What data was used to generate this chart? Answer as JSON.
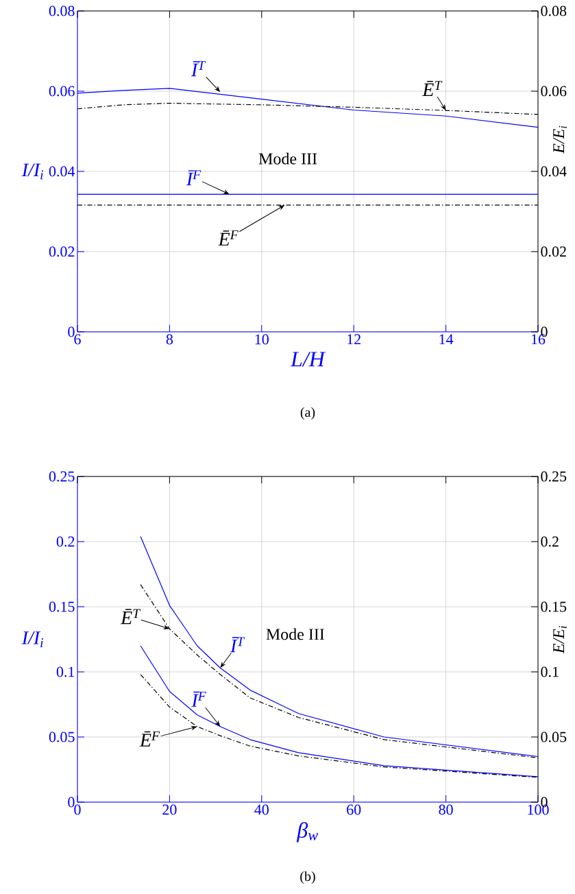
{
  "chart_data": [
    {
      "type": "line",
      "xlabel": "L/H",
      "ylabel": "I/I$_{i}$",
      "y2label": "E/E$_{i}$",
      "x": [
        6,
        7,
        8,
        10,
        12,
        14,
        16
      ],
      "series": [
        {
          "color": "#0000ff",
          "line_style": "solid",
          "values": [
            0.0595,
            0.0602,
            0.0607,
            0.058,
            0.0553,
            0.0538,
            0.051
          ]
        },
        {
          "color": "#000000",
          "line_style": "dashed",
          "axis": "y2",
          "values": [
            0.0556,
            0.0566,
            0.057,
            0.0566,
            0.056,
            0.0552,
            0.0542
          ]
        },
        {
          "color": "#0000ff",
          "line_style": "solid",
          "values": [
            0.0343,
            0.0343,
            0.0343,
            0.0343,
            0.0343,
            0.0343,
            0.0343
          ]
        },
        {
          "color": "#000000",
          "line_style": "dashed",
          "axis": "y2",
          "values": [
            0.0316,
            0.0316,
            0.0316,
            0.0316,
            0.0316,
            0.0316,
            0.0316
          ]
        }
      ],
      "xlim": [
        6,
        16
      ],
      "ylim": [
        0,
        0.08
      ],
      "y2lim": [
        0,
        0.08
      ],
      "xticks": [
        6,
        8,
        10,
        12,
        14,
        16
      ],
      "yticks": [
        0,
        0.02,
        0.04,
        0.06,
        0.08
      ],
      "y2ticks": [
        0,
        0.02,
        0.04,
        0.06,
        0.08
      ],
      "grid": true,
      "marker": "none",
      "annotations": [
        {
          "text": "Ī$^{T}$",
          "x": 9.1,
          "y": 0.0598
        },
        {
          "text": "Ē$^{T}$",
          "x": 14,
          "y": 0.0552
        },
        {
          "text": "Ī$^{F}$",
          "x": 9.3,
          "y": 0.0343
        },
        {
          "text": "Ē$^{F}$",
          "x": 10.5,
          "y": 0.0316
        },
        "Mode III",
        "(a)"
      ]
    },
    {
      "type": "line",
      "xlabel": "β$_{w}$",
      "ylabel": "I/I$_{i}$",
      "y2label": "E/E$_{i}$",
      "x": [
        13.7,
        20,
        26,
        31,
        37.5,
        48,
        66.6,
        100
      ],
      "series": [
        {
          "color": "#0000ff",
          "line_style": "solid",
          "values": [
            0.204,
            0.151,
            0.12,
            0.103,
            0.086,
            0.068,
            0.05,
            0.035
          ]
        },
        {
          "color": "#000000",
          "line_style": "dashed",
          "axis": "y2",
          "values": [
            0.167,
            0.133,
            0.113,
            0.098,
            0.08,
            0.065,
            0.048,
            0.034
          ]
        },
        {
          "color": "#0000ff",
          "line_style": "solid",
          "values": [
            0.12,
            0.085,
            0.067,
            0.058,
            0.048,
            0.038,
            0.028,
            0.0195
          ]
        },
        {
          "color": "#000000",
          "line_style": "dashed",
          "axis": "y2",
          "values": [
            0.098,
            0.073,
            0.058,
            0.051,
            0.043,
            0.0355,
            0.027,
            0.019
          ]
        }
      ],
      "xlim": [
        0,
        100
      ],
      "ylim": [
        0,
        0.25
      ],
      "y2lim": [
        0,
        0.25
      ],
      "xticks": [
        0,
        20,
        40,
        60,
        80,
        100
      ],
      "yticks": [
        0,
        0.05,
        0.1,
        0.15,
        0.2,
        0.25
      ],
      "y2ticks": [
        0,
        0.05,
        0.1,
        0.15,
        0.2,
        0.25
      ],
      "grid": true,
      "marker": "none",
      "annotations": [
        {
          "text": "Ī$^{T}$",
          "x": 31,
          "y": 0.103
        },
        {
          "text": "Ē$^{T}$",
          "x": 20,
          "y": 0.133
        },
        {
          "text": "Ī$^{F}$",
          "x": 31,
          "y": 0.058
        },
        {
          "text": "Ē$^{F}$",
          "x": 26,
          "y": 0.058
        },
        "Mode III",
        "(b)"
      ]
    }
  ]
}
